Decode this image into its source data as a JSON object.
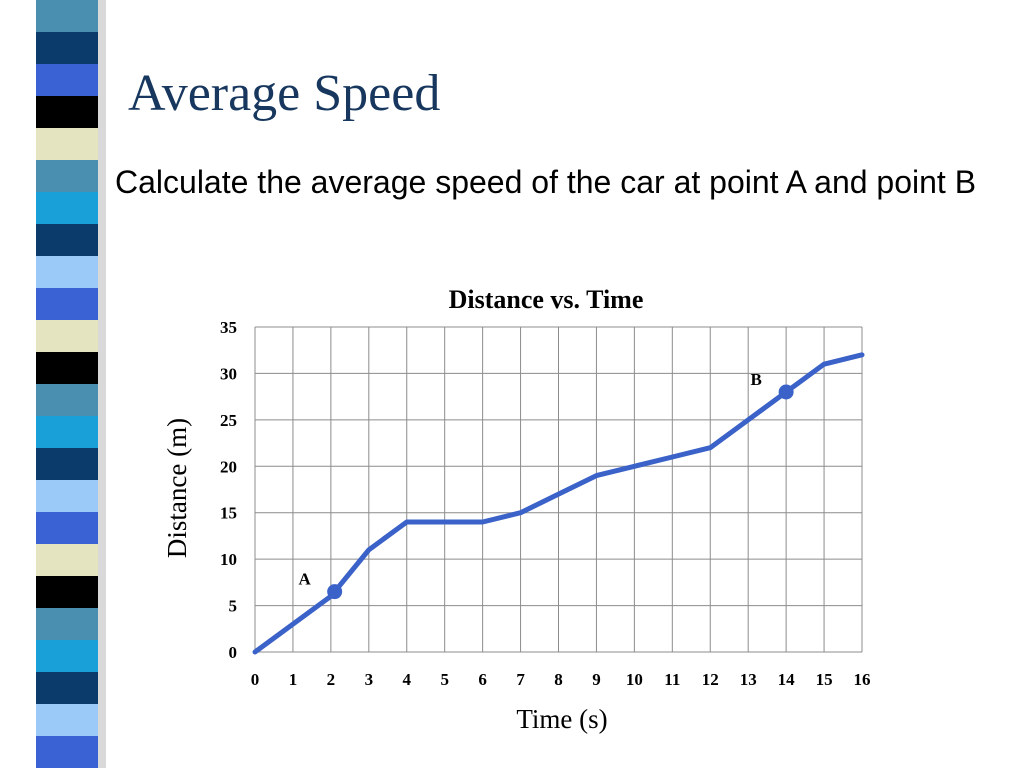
{
  "slide": {
    "title": "Average Speed",
    "body": "Calculate the average speed of the car at point A and point B"
  },
  "colors": {
    "title": "#17375e",
    "series_line": "#3a62c8",
    "grid": "#8c8c8c",
    "stripe_palette": [
      "#0a3b6b",
      "#4a8fb0",
      "#3a62d4",
      "#000000",
      "#e4e4c0",
      "#1aa0d8",
      "#9ccaf8",
      "#ffffff"
    ]
  },
  "chart_data": {
    "type": "line",
    "title": "Distance vs. Time",
    "xlabel": "Time (s)",
    "ylabel": "Distance (m)",
    "xlim": [
      0,
      16
    ],
    "ylim": [
      0,
      35
    ],
    "x_ticks": [
      "0",
      "1",
      "2",
      "3",
      "4",
      "5",
      "6",
      "7",
      "8",
      "9",
      "10",
      "11",
      "12",
      "13",
      "14",
      "15",
      "16"
    ],
    "y_ticks": [
      "0",
      "5",
      "10",
      "15",
      "20",
      "25",
      "30",
      "35"
    ],
    "grid": true,
    "series": [
      {
        "x": [
          0,
          1,
          2,
          3,
          4,
          5,
          6,
          7,
          8,
          9,
          10,
          11,
          12,
          13,
          14,
          15,
          16
        ],
        "values": [
          0,
          3,
          6,
          11,
          14,
          14,
          14,
          15,
          17,
          19,
          20,
          21,
          22,
          25,
          28,
          31,
          32
        ]
      }
    ],
    "points": [
      {
        "label": "A",
        "x": 2.1,
        "y": 6.5
      },
      {
        "label": "B",
        "x": 14,
        "y": 28
      }
    ]
  }
}
